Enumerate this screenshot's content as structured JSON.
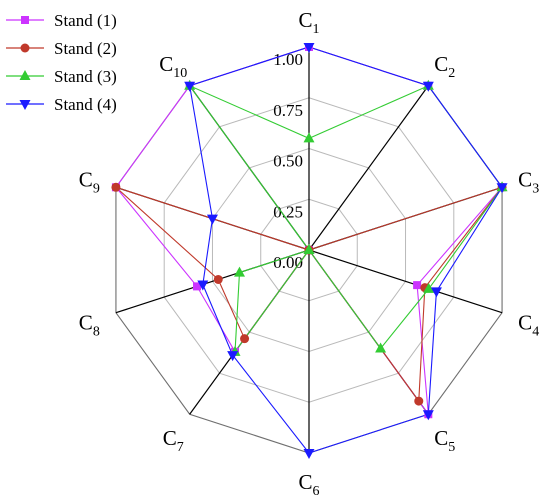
{
  "chart_data": {
    "type": "radar",
    "axes": [
      "C1",
      "C2",
      "C3",
      "C4",
      "C5",
      "C6",
      "C7",
      "C8",
      "C9",
      "C10"
    ],
    "axis_labels": [
      {
        "main": "C",
        "sub": "1"
      },
      {
        "main": "C",
        "sub": "2"
      },
      {
        "main": "C",
        "sub": "3"
      },
      {
        "main": "C",
        "sub": "4"
      },
      {
        "main": "C",
        "sub": "5"
      },
      {
        "main": "C",
        "sub": "6"
      },
      {
        "main": "C",
        "sub": "7"
      },
      {
        "main": "C",
        "sub": "8"
      },
      {
        "main": "C",
        "sub": "9"
      },
      {
        "main": "C",
        "sub": "10"
      }
    ],
    "radial_range": [
      0,
      1
    ],
    "radial_ticks": [
      {
        "value": 0,
        "label": "0.00"
      },
      {
        "value": 0.25,
        "label": "0.25"
      },
      {
        "value": 0.5,
        "label": "0.50"
      },
      {
        "value": 0.75,
        "label": "0.75"
      },
      {
        "value": 1,
        "label": "1.00"
      }
    ],
    "grid": true,
    "legend": "top-left",
    "series": [
      {
        "name": "Stand (1)",
        "color": "#cc33ff",
        "marker": "square",
        "values": [
          1.0,
          1.0,
          1.0,
          0.56,
          1.0,
          0.0,
          0.62,
          0.58,
          1.0,
          1.0
        ]
      },
      {
        "name": "Stand (2)",
        "color": "#c0392b",
        "marker": "circle",
        "values": [
          0.0,
          0.0,
          1.0,
          0.6,
          0.92,
          0.0,
          0.54,
          0.47,
          1.0,
          0.0
        ]
      },
      {
        "name": "Stand (3)",
        "color": "#33cc33",
        "marker": "triangle-up",
        "values": [
          0.55,
          1.0,
          1.0,
          0.62,
          0.6,
          0.0,
          0.62,
          0.36,
          0.0,
          1.0
        ]
      },
      {
        "name": "Stand (4)",
        "color": "#1a1aff",
        "marker": "triangle-down",
        "values": [
          1.0,
          1.0,
          1.0,
          0.66,
          1.0,
          1.0,
          0.64,
          0.55,
          0.5,
          1.0
        ]
      }
    ]
  }
}
